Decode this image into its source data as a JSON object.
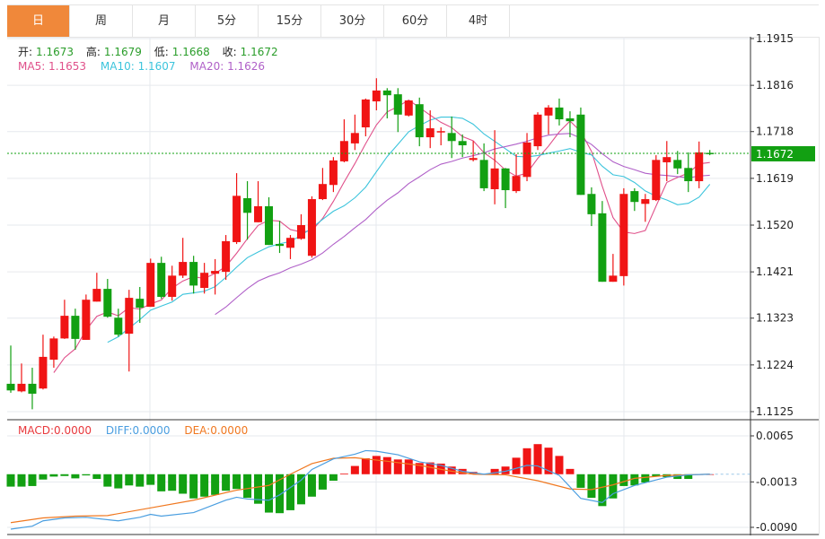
{
  "tabs": [
    "日",
    "周",
    "月",
    "5分",
    "15分",
    "30分",
    "60分",
    "4时"
  ],
  "active_tab": 0,
  "colors": {
    "up": "#f01414",
    "down": "#12a012",
    "accent": "#f0883a",
    "ma5": "#e0508a",
    "ma10": "#3cc4dc",
    "ma20": "#b060c8",
    "diff": "#4a9ee0",
    "dea": "#f07820",
    "last_price_bg": "#12a012"
  },
  "ohlc_legend": {
    "open_label": "开:",
    "open": "1.1673",
    "high_label": "高:",
    "high": "1.1679",
    "low_label": "低:",
    "low": "1.1668",
    "close_label": "收:",
    "close": "1.1672"
  },
  "ma_legend": {
    "ma5": "MA5: 1.1653",
    "ma10": "MA10: 1.1607",
    "ma20": "MA20: 1.1626"
  },
  "macd_legend": {
    "macd": "MACD:0.0000",
    "diff": "DIFF:0.0000",
    "dea": "DEA:0.0000"
  },
  "last_price_label": "1.1672",
  "chart_data": [
    {
      "type": "candlestick",
      "ylim": [
        1.1125,
        1.1915
      ],
      "y_ticks": [
        "1.1915",
        "1.1816",
        "1.1718",
        "1.1619",
        "1.1520",
        "1.1421",
        "1.1323",
        "1.1224",
        "1.1125"
      ],
      "grid": true,
      "last_price": 1.1672,
      "ma_periods": [
        5,
        10,
        20
      ],
      "ohlc": [
        [
          1.1184,
          1.1265,
          1.1165,
          1.117
        ],
        [
          1.1168,
          1.1227,
          1.1166,
          1.1184
        ],
        [
          1.1184,
          1.1218,
          1.113,
          1.1163
        ],
        [
          1.1174,
          1.1288,
          1.1172,
          1.1241
        ],
        [
          1.1235,
          1.1284,
          1.1218,
          1.128
        ],
        [
          1.128,
          1.1362,
          1.1279,
          1.1328
        ],
        [
          1.1328,
          1.1343,
          1.1256,
          1.1279
        ],
        [
          1.1277,
          1.1373,
          1.1277,
          1.1362
        ],
        [
          1.1358,
          1.1419,
          1.1358,
          1.1385
        ],
        [
          1.1385,
          1.1406,
          1.1324,
          1.1326
        ],
        [
          1.1324,
          1.1343,
          1.1284,
          1.1288
        ],
        [
          1.129,
          1.1383,
          1.121,
          1.1366
        ],
        [
          1.1364,
          1.1389,
          1.1313,
          1.1345
        ],
        [
          1.1347,
          1.1449,
          1.1347,
          1.144
        ],
        [
          1.144,
          1.1453,
          1.1364,
          1.1368
        ],
        [
          1.1368,
          1.1434,
          1.136,
          1.1413
        ],
        [
          1.1413,
          1.1493,
          1.1408,
          1.1442
        ],
        [
          1.1442,
          1.1455,
          1.1375,
          1.1392
        ],
        [
          1.1387,
          1.144,
          1.1375,
          1.1419
        ],
        [
          1.1417,
          1.1448,
          1.1373,
          1.1423
        ],
        [
          1.1421,
          1.1499,
          1.1404,
          1.1486
        ],
        [
          1.1484,
          1.163,
          1.148,
          1.1582
        ],
        [
          1.1577,
          1.1613,
          1.1489,
          1.1546
        ],
        [
          1.1526,
          1.1613,
          1.1526,
          1.156
        ],
        [
          1.156,
          1.1579,
          1.1478,
          1.1478
        ],
        [
          1.148,
          1.1529,
          1.1461,
          1.1476
        ],
        [
          1.1472,
          1.1499,
          1.1448,
          1.1493
        ],
        [
          1.1491,
          1.1543,
          1.1489,
          1.152
        ],
        [
          1.1455,
          1.1581,
          1.1451,
          1.1575
        ],
        [
          1.1575,
          1.1641,
          1.1573,
          1.1607
        ],
        [
          1.1605,
          1.1664,
          1.159,
          1.1657
        ],
        [
          1.1655,
          1.1744,
          1.1653,
          1.1698
        ],
        [
          1.1693,
          1.1754,
          1.1679,
          1.1715
        ],
        [
          1.1727,
          1.1788,
          1.1708,
          1.1786
        ],
        [
          1.1782,
          1.1831,
          1.1763,
          1.1805
        ],
        [
          1.1805,
          1.181,
          1.1746,
          1.1795
        ],
        [
          1.1797,
          1.181,
          1.1717,
          1.1754
        ],
        [
          1.1752,
          1.1784,
          1.175,
          1.1784
        ],
        [
          1.1776,
          1.179,
          1.1687,
          1.1706
        ],
        [
          1.1706,
          1.1763,
          1.1683,
          1.1725
        ],
        [
          1.1717,
          1.1727,
          1.1689,
          1.1719
        ],
        [
          1.1715,
          1.175,
          1.1662,
          1.1698
        ],
        [
          1.1698,
          1.1712,
          1.1664,
          1.1689
        ],
        [
          1.1658,
          1.1698,
          1.1655,
          1.1662
        ],
        [
          1.1658,
          1.1693,
          1.1592,
          1.1598
        ],
        [
          1.1596,
          1.1721,
          1.1564,
          1.164
        ],
        [
          1.164,
          1.1641,
          1.1556,
          1.1594
        ],
        [
          1.1592,
          1.167,
          1.1588,
          1.1624
        ],
        [
          1.1622,
          1.1715,
          1.1613,
          1.1695
        ],
        [
          1.1687,
          1.1759,
          1.1679,
          1.1754
        ],
        [
          1.1752,
          1.1774,
          1.1712,
          1.1769
        ],
        [
          1.1769,
          1.1788,
          1.1731,
          1.1744
        ],
        [
          1.1746,
          1.1761,
          1.1706,
          1.174
        ],
        [
          1.1754,
          1.1769,
          1.1584,
          1.1584
        ],
        [
          1.1586,
          1.16,
          1.1518,
          1.1543
        ],
        [
          1.1545,
          1.1571,
          1.14,
          1.14
        ],
        [
          1.14,
          1.1459,
          1.14,
          1.1413
        ],
        [
          1.1412,
          1.1598,
          1.1392,
          1.1586
        ],
        [
          1.1592,
          1.1598,
          1.155,
          1.1569
        ],
        [
          1.1565,
          1.1586,
          1.1527,
          1.1575
        ],
        [
          1.1573,
          1.1668,
          1.1571,
          1.1658
        ],
        [
          1.1653,
          1.1698,
          1.1613,
          1.1664
        ],
        [
          1.1658,
          1.1677,
          1.1628,
          1.164
        ],
        [
          1.1641,
          1.1674,
          1.159,
          1.1613
        ],
        [
          1.1613,
          1.1697,
          1.1598,
          1.1674
        ],
        [
          1.1673,
          1.1679,
          1.1668,
          1.1672
        ]
      ]
    },
    {
      "type": "macd",
      "ylim": [
        -0.009,
        0.0065
      ],
      "y_ticks": [
        "0.0065",
        "-0.0013",
        "-0.0090"
      ],
      "histogram": [
        -0.0021,
        -0.0021,
        -0.002,
        -0.0009,
        -0.0004,
        -0.0003,
        -0.0007,
        -0.0002,
        -0.0008,
        -0.0021,
        -0.0024,
        -0.0019,
        -0.0021,
        -0.0018,
        -0.0029,
        -0.0028,
        -0.0033,
        -0.0041,
        -0.0038,
        -0.0035,
        -0.0028,
        -0.0025,
        -0.004,
        -0.005,
        -0.0065,
        -0.0066,
        -0.0061,
        -0.0051,
        -0.0038,
        -0.0026,
        -0.0011,
        0.0001,
        0.0014,
        0.0027,
        0.0031,
        0.0029,
        0.0025,
        0.0025,
        0.0019,
        0.002,
        0.0018,
        0.0013,
        0.0009,
        0.0004,
        0.0001,
        0.0009,
        0.0013,
        0.0028,
        0.0044,
        0.0051,
        0.0045,
        0.0031,
        0.0009,
        -0.0023,
        -0.004,
        -0.0054,
        -0.0041,
        -0.002,
        -0.0019,
        -0.0014,
        -0.0004,
        -0.0005,
        -0.0008,
        -0.0008,
        0.0,
        0.0
      ],
      "diff": [
        [
          0,
          -0.0093
        ],
        [
          2,
          -0.0088
        ],
        [
          3,
          -0.0079
        ],
        [
          5,
          -0.0074
        ],
        [
          7,
          -0.0073
        ],
        [
          10,
          -0.0079
        ],
        [
          12,
          -0.0073
        ],
        [
          13,
          -0.0068
        ],
        [
          14,
          -0.0071
        ],
        [
          17,
          -0.0065
        ],
        [
          20,
          -0.0044
        ],
        [
          21,
          -0.0039
        ],
        [
          22,
          -0.0042
        ],
        [
          24,
          -0.0044
        ],
        [
          25,
          -0.0035
        ],
        [
          27,
          -0.001
        ],
        [
          28,
          0.0008
        ],
        [
          30,
          0.0026
        ],
        [
          32,
          0.0034
        ],
        [
          33,
          0.004
        ],
        [
          34,
          0.0039
        ],
        [
          36,
          0.0033
        ],
        [
          38,
          0.0021
        ],
        [
          40,
          0.0015
        ],
        [
          42,
          0.0005
        ],
        [
          44,
          0.0
        ],
        [
          46,
          0.0005
        ],
        [
          48,
          0.0015
        ],
        [
          49,
          0.0014
        ],
        [
          51,
          -0.0002
        ],
        [
          53,
          -0.0041
        ],
        [
          55,
          -0.0048
        ],
        [
          56,
          -0.0033
        ],
        [
          58,
          -0.0019
        ],
        [
          61,
          -0.0005
        ],
        [
          63,
          -0.0001
        ],
        [
          65,
          0.0
        ]
      ],
      "dea": [
        [
          0,
          -0.0082
        ],
        [
          3,
          -0.0074
        ],
        [
          6,
          -0.0071
        ],
        [
          9,
          -0.007
        ],
        [
          13,
          -0.0057
        ],
        [
          17,
          -0.0044
        ],
        [
          21,
          -0.0027
        ],
        [
          24,
          -0.0019
        ],
        [
          26,
          0.0
        ],
        [
          28,
          0.0018
        ],
        [
          30,
          0.0027
        ],
        [
          32,
          0.0028
        ],
        [
          35,
          0.0022
        ],
        [
          38,
          0.0015
        ],
        [
          41,
          0.0005
        ],
        [
          43,
          0.0
        ],
        [
          46,
          -0.0001
        ],
        [
          49,
          -0.0011
        ],
        [
          52,
          -0.0025
        ],
        [
          54,
          -0.0026
        ],
        [
          56,
          -0.0018
        ],
        [
          58,
          -0.0007
        ],
        [
          61,
          -0.0002
        ],
        [
          65,
          0.0
        ]
      ]
    }
  ]
}
